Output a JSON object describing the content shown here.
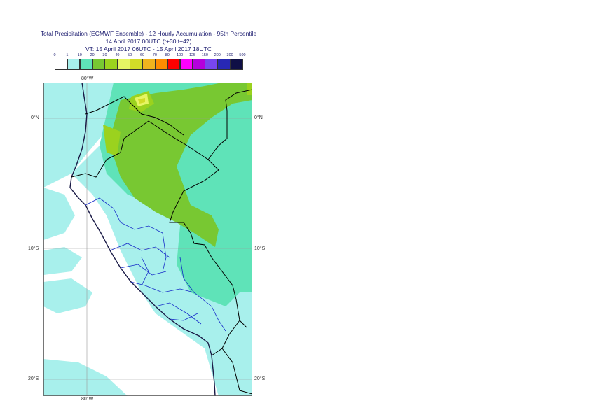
{
  "title": {
    "line1": "Total Precipitation (ECMWF Ensemble) - 12 Hourly Accumulation - 95th Percentile",
    "line2": "14 April 2017 00UTC (t+30,t+42)",
    "line3": "VT: 15 April 2017 06UTC - 15 April 2017 18UTC"
  },
  "legend": {
    "labels": [
      "0",
      "1",
      "10",
      "20",
      "30",
      "40",
      "50",
      "60",
      "70",
      "80",
      "100",
      "125",
      "150",
      "200",
      "300",
      "500"
    ],
    "colors": [
      "#ffffff",
      "#a8f0ec",
      "#5fe3b8",
      "#78c832",
      "#9bd21e",
      "#e6f564",
      "#d2dc28",
      "#f0b41e",
      "#ff8c00",
      "#ff0000",
      "#ff00ff",
      "#b400dc",
      "#7846f0",
      "#2828b4",
      "#0f0f46"
    ]
  },
  "axes": {
    "top_lon": "80°W",
    "bottom_lon": "80°W",
    "lat_left": [
      "0°N",
      "10°S",
      "20°S"
    ],
    "lat_right": [
      "0°N",
      "10°S",
      "20°S"
    ]
  }
}
